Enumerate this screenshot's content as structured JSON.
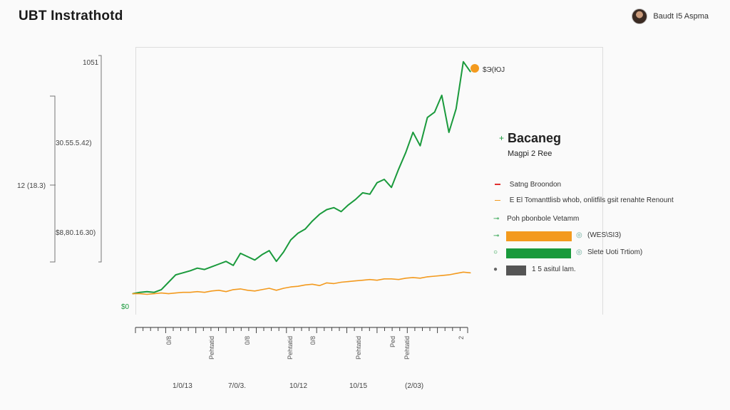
{
  "header": {
    "title": "UBT Instrathotd",
    "user_name": "Baudt I5 Aspma"
  },
  "legend": {
    "title": "Bacaneg",
    "subtitle": "Magpi 2 Ree",
    "items": [
      {
        "label": "Satng Broondon",
        "color": "#e03030",
        "marker": "line"
      },
      {
        "label": "E El Tomanttlisb whob, onlitfils gsit renahte Renount",
        "color": "#f39a1e",
        "marker": "line"
      },
      {
        "label": "Poh pbonbole Vetamm",
        "color": "#1a9a3c",
        "marker": "dot"
      }
    ],
    "bars": [
      {
        "label": "(WES\\SI3)",
        "color": "#f39a1e",
        "value": 0.71,
        "icon": "coin-icon"
      },
      {
        "label": "Slete Uoti Trtiom)",
        "color": "#1a9a3c",
        "value": 0.7,
        "icon": "coin-icon"
      },
      {
        "label": "1 5 asitul lam.",
        "color": "#555555",
        "value": 0.21,
        "icon": "dot-icon"
      }
    ]
  },
  "annotation": {
    "label": "$Э(ЮЈ",
    "color": "#f39a1e"
  },
  "chart_data": {
    "type": "line",
    "y_axis_labels": [
      "1051",
      "30.55.5.42)",
      "12 (18.3)",
      "$8,80.16.30)",
      "$0"
    ],
    "x_tick_labels": [
      "0/8",
      "Pehtatid",
      "0/8",
      "Pehtatid",
      "0/8",
      "Pehtatid",
      "Ped",
      "Pehtatid",
      "2"
    ],
    "x_period_labels": [
      "1/0/13",
      "7/0/3.",
      "10/12",
      "10/15",
      "(2/03)"
    ],
    "series": [
      {
        "color": "#1a9a3c",
        "values": [
          0,
          2,
          3,
          2,
          6,
          17,
          28,
          31,
          34,
          38,
          36,
          40,
          44,
          48,
          42,
          60,
          55,
          50,
          58,
          64,
          48,
          62,
          80,
          90,
          96,
          108,
          118,
          125,
          128,
          122,
          132,
          140,
          150,
          148,
          165,
          170,
          158,
          185,
          210,
          240,
          220,
          262,
          270,
          295,
          240,
          275,
          345,
          330
        ]
      },
      {
        "color": "#f39a1e",
        "values": [
          0,
          0,
          -1,
          0,
          1,
          0,
          1,
          2,
          2,
          3,
          2,
          4,
          5,
          3,
          6,
          7,
          5,
          4,
          6,
          8,
          5,
          8,
          10,
          11,
          13,
          14,
          12,
          16,
          15,
          17,
          18,
          19,
          20,
          21,
          20,
          22,
          22,
          21,
          23,
          24,
          23,
          25,
          26,
          27,
          28,
          30,
          32,
          31
        ]
      }
    ],
    "ylim": [
      -10,
      350
    ],
    "grid": false
  }
}
